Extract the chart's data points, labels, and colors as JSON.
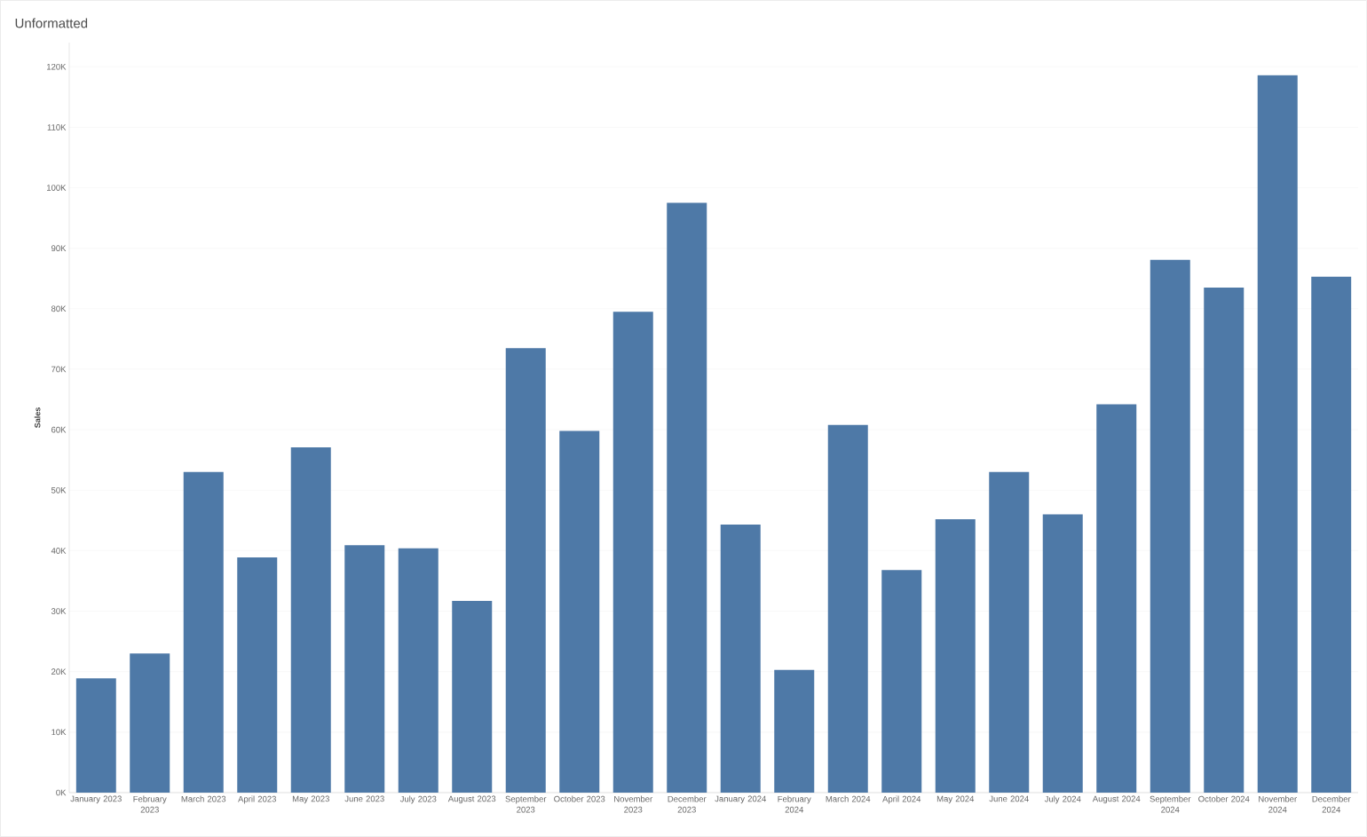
{
  "chart_data": {
    "type": "bar",
    "title": "Unformatted",
    "ylabel": "Sales",
    "categories": [
      "January 2023",
      "February 2023",
      "March 2023",
      "April 2023",
      "May 2023",
      "June 2023",
      "July 2023",
      "August 2023",
      "September 2023",
      "October 2023",
      "November 2023",
      "December 2023",
      "January 2024",
      "February 2024",
      "March 2024",
      "April 2024",
      "May 2024",
      "June 2024",
      "July 2024",
      "August 2024",
      "September 2024",
      "October 2024",
      "November 2024",
      "December 2024"
    ],
    "values": [
      18900,
      23000,
      53000,
      38900,
      57100,
      40900,
      40400,
      31700,
      73500,
      59800,
      79500,
      97500,
      44300,
      20300,
      60800,
      36800,
      45200,
      53000,
      46000,
      64200,
      88100,
      83500,
      118600,
      85300
    ],
    "color": "#4e79a7",
    "ylim": [
      0,
      124000
    ],
    "yticks": [
      {
        "value": 0,
        "label": "0K"
      },
      {
        "value": 10000,
        "label": "10K"
      },
      {
        "value": 20000,
        "label": "20K"
      },
      {
        "value": 30000,
        "label": "30K"
      },
      {
        "value": 40000,
        "label": "40K"
      },
      {
        "value": 50000,
        "label": "50K"
      },
      {
        "value": 60000,
        "label": "60K"
      },
      {
        "value": 70000,
        "label": "70K"
      },
      {
        "value": 80000,
        "label": "80K"
      },
      {
        "value": 90000,
        "label": "90K"
      },
      {
        "value": 100000,
        "label": "100K"
      },
      {
        "value": 110000,
        "label": "110K"
      },
      {
        "value": 120000,
        "label": "120K"
      }
    ],
    "grid": "y"
  }
}
